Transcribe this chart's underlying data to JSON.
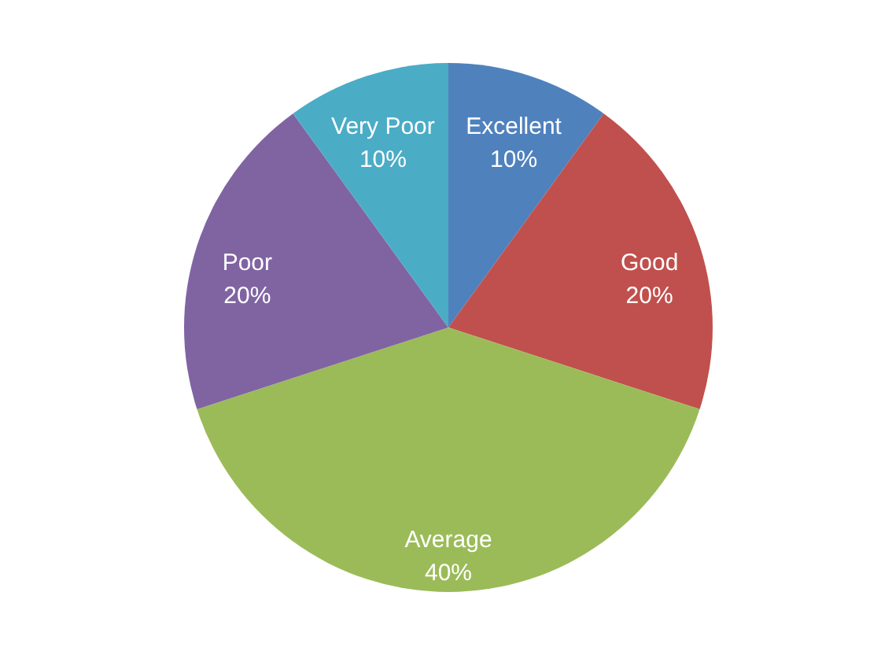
{
  "chart_data": {
    "type": "pie",
    "categories": [
      "Excellent",
      "Good",
      "Average",
      "Poor",
      "Very Poor"
    ],
    "values": [
      10,
      20,
      40,
      20,
      10
    ],
    "colors": [
      "#4f81bd",
      "#c0504d",
      "#9bbb59",
      "#8064a2",
      "#4bacc6"
    ],
    "value_labels": [
      "10%",
      "20%",
      "40%",
      "20%",
      "10%"
    ]
  }
}
